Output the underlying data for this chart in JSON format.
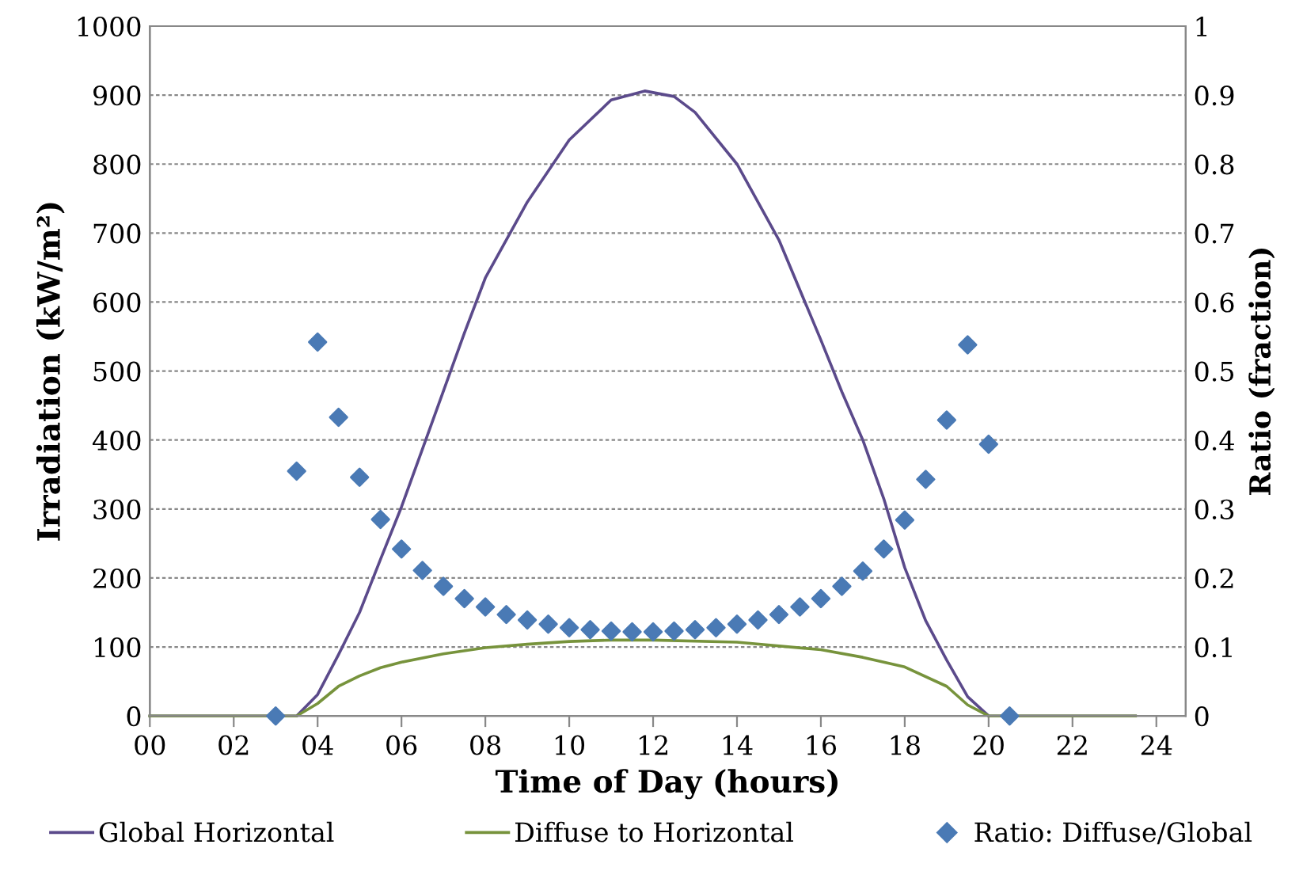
{
  "chart_data": {
    "type": "line",
    "xlabel": "Time of Day (hours)",
    "ylabel": "Irradiation (kW/m²)",
    "y2label": "Ratio (fraction)",
    "xlim": [
      0,
      24.7
    ],
    "ylim": [
      0,
      1000
    ],
    "y2lim": [
      0,
      1
    ],
    "xticks": [
      {
        "value": 0,
        "label": "00"
      },
      {
        "value": 2,
        "label": "02"
      },
      {
        "value": 4,
        "label": "04"
      },
      {
        "value": 6,
        "label": "06"
      },
      {
        "value": 8,
        "label": "08"
      },
      10,
      12,
      14,
      16,
      18,
      20,
      22,
      24
    ],
    "yticks": [
      0,
      100,
      200,
      300,
      400,
      500,
      600,
      700,
      800,
      900,
      1000
    ],
    "y2ticks": [
      0,
      0.1,
      0.2,
      0.3,
      0.4,
      0.5,
      0.6,
      0.7,
      0.8,
      0.9,
      1
    ],
    "grid": "y",
    "legend": "bottom",
    "series": [
      {
        "name": "Global Horizontal",
        "color": "#5b4a8b",
        "x": [
          0,
          3.5,
          4,
          4.5,
          5,
          5.5,
          6,
          6.5,
          7,
          7.5,
          8,
          9,
          10,
          11,
          11.8,
          12.5,
          13,
          14,
          15,
          16,
          16.5,
          17,
          17.5,
          18,
          18.5,
          19,
          19.5,
          20,
          23.5
        ],
        "values": [
          0,
          0,
          31,
          89,
          150,
          227,
          303,
          387,
          471,
          555,
          635,
          745,
          835,
          893,
          906,
          898,
          875,
          800,
          690,
          545,
          470,
          400,
          315,
          215,
          138,
          81,
          28,
          0,
          0
        ]
      },
      {
        "name": "Diffuse to Horizontal",
        "color": "#77933c",
        "x": [
          0,
          3.5,
          4,
          4.5,
          5,
          5.5,
          6,
          7,
          8,
          9,
          10,
          11,
          12,
          14,
          16,
          17,
          18,
          19,
          19.5,
          20,
          23.5
        ],
        "values": [
          0,
          0,
          18,
          43,
          58,
          70,
          78,
          90,
          99,
          104,
          108,
          110,
          110,
          107,
          96,
          85,
          71,
          43,
          16,
          0,
          0
        ]
      },
      {
        "name": "Ratio: Diffuse/Global",
        "type": "scatter",
        "axis": "y2",
        "marker": "diamond",
        "color": "#4a7ab5",
        "x": [
          3,
          3.5,
          4,
          4.5,
          5,
          5.5,
          6,
          6.5,
          7,
          7.5,
          8,
          8.5,
          9,
          9.5,
          10,
          10.5,
          11,
          11.5,
          12,
          12.5,
          13,
          13.5,
          14,
          14.5,
          15,
          15.5,
          16,
          16.5,
          17,
          17.5,
          18,
          18.5,
          19,
          19.5,
          20,
          20.5
        ],
        "values": [
          0,
          0.355,
          0.542,
          0.433,
          0.346,
          0.285,
          0.242,
          0.211,
          0.188,
          0.17,
          0.158,
          0.147,
          0.139,
          0.133,
          0.128,
          0.125,
          0.123,
          0.122,
          0.122,
          0.123,
          0.125,
          0.128,
          0.133,
          0.139,
          0.147,
          0.158,
          0.17,
          0.188,
          0.21,
          0.242,
          0.284,
          0.343,
          0.429,
          0.538,
          0.394,
          0
        ]
      }
    ]
  }
}
